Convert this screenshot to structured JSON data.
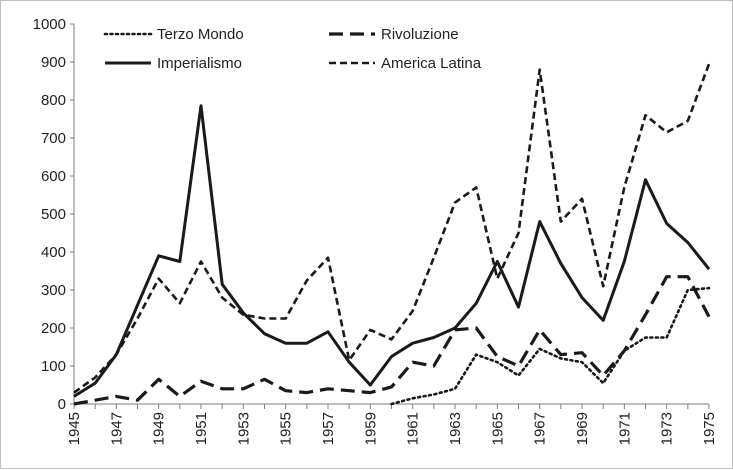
{
  "chart_data": {
    "type": "line",
    "title": "",
    "xlabel": "",
    "ylabel": "",
    "ylim": [
      0,
      1000
    ],
    "xlim": [
      1945,
      1975
    ],
    "x": [
      1945,
      1946,
      1947,
      1948,
      1949,
      1950,
      1951,
      1952,
      1953,
      1954,
      1955,
      1956,
      1957,
      1958,
      1959,
      1960,
      1961,
      1962,
      1963,
      1964,
      1965,
      1966,
      1967,
      1968,
      1969,
      1970,
      1971,
      1972,
      1973,
      1974,
      1975
    ],
    "y_ticks": [
      "0",
      "100",
      "200",
      "300",
      "400",
      "500",
      "600",
      "700",
      "800",
      "900",
      "1000"
    ],
    "y_tick_values": [
      0,
      100,
      200,
      300,
      400,
      500,
      600,
      700,
      800,
      900,
      1000
    ],
    "x_ticks": [
      "1945",
      "1947",
      "1949",
      "1951",
      "1953",
      "1955",
      "1957",
      "1959",
      "1961",
      "1963",
      "1965",
      "1967",
      "1969",
      "1971",
      "1973",
      "1975"
    ],
    "x_tick_values": [
      1945,
      1947,
      1949,
      1951,
      1953,
      1955,
      1957,
      1959,
      1961,
      1963,
      1965,
      1967,
      1969,
      1971,
      1973,
      1975
    ],
    "legend_position": "top",
    "series": [
      {
        "name": "Terzo Mondo",
        "style": "dotted",
        "color": "#1a1a1a",
        "x": [
          1960,
          1961,
          1962,
          1963,
          1964,
          1965,
          1966,
          1967,
          1968,
          1969,
          1970,
          1971,
          1972,
          1973,
          1974,
          1975
        ],
        "values": [
          0,
          15,
          25,
          40,
          130,
          110,
          75,
          145,
          120,
          110,
          55,
          140,
          175,
          175,
          300,
          305
        ]
      },
      {
        "name": "Rivoluzione",
        "style": "long-dash",
        "color": "#1a1a1a",
        "x": [
          1945,
          1946,
          1947,
          1948,
          1949,
          1950,
          1951,
          1952,
          1953,
          1954,
          1955,
          1956,
          1957,
          1958,
          1959,
          1960,
          1961,
          1962,
          1963,
          1964,
          1965,
          1966,
          1967,
          1968,
          1969,
          1970,
          1971,
          1972,
          1973,
          1974,
          1975
        ],
        "values": [
          0,
          10,
          20,
          10,
          65,
          20,
          60,
          40,
          40,
          65,
          35,
          30,
          40,
          35,
          30,
          45,
          110,
          100,
          195,
          200,
          125,
          100,
          195,
          130,
          135,
          75,
          140,
          235,
          335,
          335,
          230
        ]
      },
      {
        "name": "Imperialismo",
        "style": "solid",
        "color": "#1a1a1a",
        "x": [
          1945,
          1946,
          1947,
          1948,
          1949,
          1950,
          1951,
          1952,
          1953,
          1954,
          1955,
          1956,
          1957,
          1958,
          1959,
          1960,
          1961,
          1962,
          1963,
          1964,
          1965,
          1966,
          1967,
          1968,
          1969,
          1970,
          1971,
          1972,
          1973,
          1974,
          1975
        ],
        "values": [
          20,
          55,
          130,
          260,
          390,
          375,
          785,
          315,
          240,
          185,
          160,
          160,
          190,
          110,
          50,
          125,
          160,
          175,
          200,
          265,
          375,
          255,
          480,
          370,
          280,
          220,
          375,
          590,
          475,
          425,
          355
        ]
      },
      {
        "name": "America Latina",
        "style": "short-dash",
        "color": "#1a1a1a",
        "x": [
          1945,
          1946,
          1947,
          1948,
          1949,
          1950,
          1951,
          1952,
          1953,
          1954,
          1955,
          1956,
          1957,
          1958,
          1959,
          1960,
          1961,
          1962,
          1963,
          1964,
          1965,
          1966,
          1967,
          1968,
          1969,
          1970,
          1971,
          1972,
          1973,
          1974,
          1975
        ],
        "values": [
          30,
          70,
          130,
          225,
          330,
          265,
          375,
          280,
          235,
          225,
          225,
          325,
          385,
          115,
          195,
          170,
          245,
          385,
          530,
          570,
          330,
          450,
          880,
          480,
          540,
          310,
          570,
          760,
          715,
          745,
          895
        ]
      }
    ]
  }
}
